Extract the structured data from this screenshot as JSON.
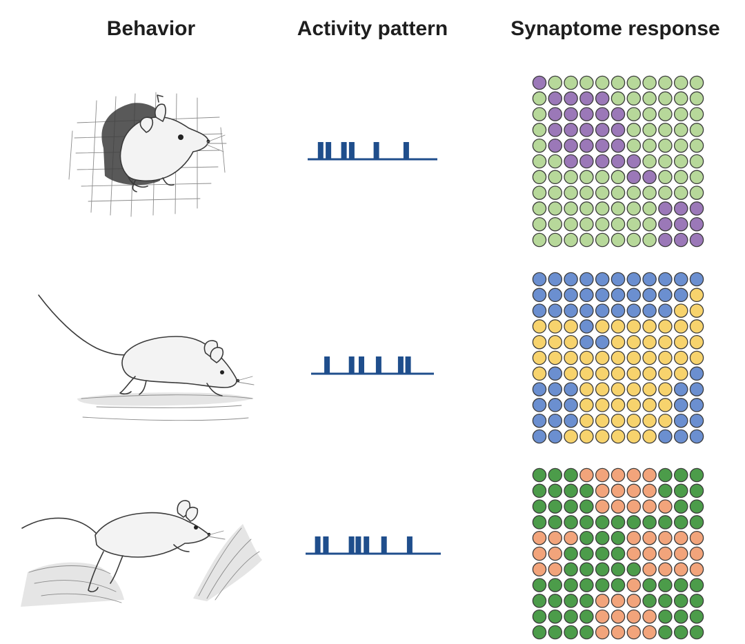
{
  "headers": {
    "behavior": "Behavior",
    "activity": "Activity pattern",
    "synaptome": "Synaptome response"
  },
  "colors": {
    "spike": "#1f4e8c",
    "stroke": "#3a3a3a"
  },
  "rows": [
    {
      "behavior_icon": "mouse-peeking-from-hole-icon",
      "spike_positions": [
        0.1,
        0.16,
        0.28,
        0.34,
        0.53,
        0.76
      ],
      "palette": {
        "A": "#9b78b8",
        "B": "#b7d89a"
      },
      "grid": [
        "ABBBBBBBBBB",
        "BAAAABBBBBB",
        "BAAAAABBBBB",
        "BAAAAABBBBB",
        "BAAAAABBBBB",
        "BBAAAAABBBB",
        "BBBBBBAABBB",
        "BBBBBBBBBBB",
        "BBBBBBBBAAA",
        "BBBBBBBBAAA",
        "BBBBBBBBAAA"
      ]
    },
    {
      "behavior_icon": "mouse-running-icon",
      "spike_positions": [
        0.13,
        0.33,
        0.41,
        0.55,
        0.73,
        0.79
      ],
      "palette": {
        "A": "#6b8fd0",
        "B": "#f7d36d"
      },
      "grid": [
        "AAAAAAAAAAA",
        "AAAAAAAAAAB",
        "AAAAAAAAABB",
        "BBBABBBBBBB",
        "BBBAABBBBBB",
        "BBBBBBBBBBB",
        "BABBBBBBBBA",
        "AAABBBBBBAA",
        "AAABBBBBBAA",
        "AAABBBBBBAA",
        "AABBBBBBAAA"
      ]
    },
    {
      "behavior_icon": "mouse-jumping-icon",
      "spike_positions": [
        0.09,
        0.15,
        0.34,
        0.39,
        0.45,
        0.58,
        0.77
      ],
      "palette": {
        "A": "#4c9c4a",
        "B": "#f2a47b"
      },
      "grid": [
        "AAABBBBBAAA",
        "AAAABBBBAAA",
        "AAAABBBBBAA",
        "AAAAAAAAAAA",
        "BBBAAABBBBB",
        "BBAAAABBBBB",
        "BBAAAAABBBB",
        "AAAAAABAAAA",
        "AAAABBBAAAA",
        "AAAABBBBAAA",
        "AAAABBBBAAA"
      ]
    }
  ]
}
